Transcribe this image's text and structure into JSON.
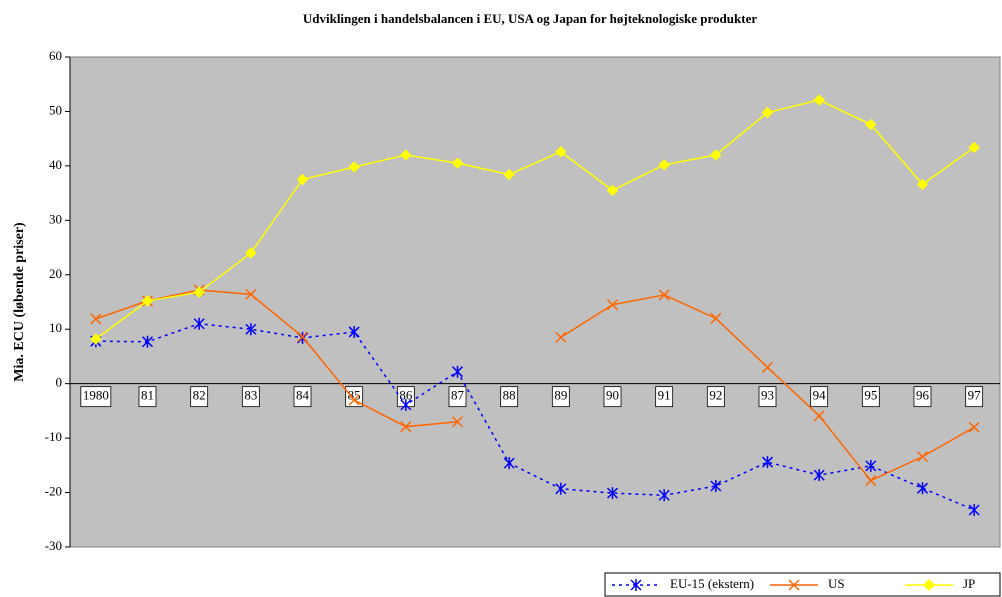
{
  "chart_data": {
    "type": "line",
    "title": "Udviklingen i handelsbalancen i EU, USA og Japan for højteknologiske produkter",
    "y_label": "Mia. ECU (løbende priser)",
    "categories": [
      "1980",
      "81",
      "82",
      "83",
      "84",
      "85",
      "86",
      "87",
      "88",
      "89",
      "90",
      "91",
      "92",
      "93",
      "94",
      "95",
      "96",
      "97"
    ],
    "series": [
      {
        "name": "EU-15 (ekstern)",
        "color": "#0000ff",
        "dashed": true,
        "marker": "asterisk",
        "values": [
          7.8,
          7.7,
          11,
          10,
          8.4,
          9.5,
          -3.9,
          2.2,
          -14.6,
          -19.3,
          -20.1,
          -20.5,
          -18.8,
          -14.4,
          -16.8,
          -15.1,
          -19.2,
          -23.2
        ]
      },
      {
        "name": "US",
        "color": "#ff6600",
        "dashed": false,
        "marker": "x",
        "values": [
          11.9,
          15.2,
          17.2,
          16.4,
          8.6,
          -3,
          -7.9,
          -7,
          null,
          8.5,
          14.5,
          16.3,
          12,
          3,
          -5.9,
          -17.8,
          -13.4,
          -8
        ]
      },
      {
        "name": "JP",
        "color": "#ffff00",
        "dashed": false,
        "marker": "diamond",
        "values": [
          8.2,
          15.2,
          16.8,
          24,
          37.5,
          39.8,
          42,
          40.5,
          38.4,
          42.6,
          35.5,
          40.2,
          42,
          49.8,
          52.1,
          47.6,
          36.6,
          43.4
        ]
      }
    ],
    "ylim": [
      -30,
      60
    ],
    "yticks": [
      -30,
      -20,
      -10,
      0,
      10,
      20,
      30,
      40,
      50,
      60
    ],
    "plot_background": "#c0c0c0",
    "legend": "bottom-right"
  }
}
